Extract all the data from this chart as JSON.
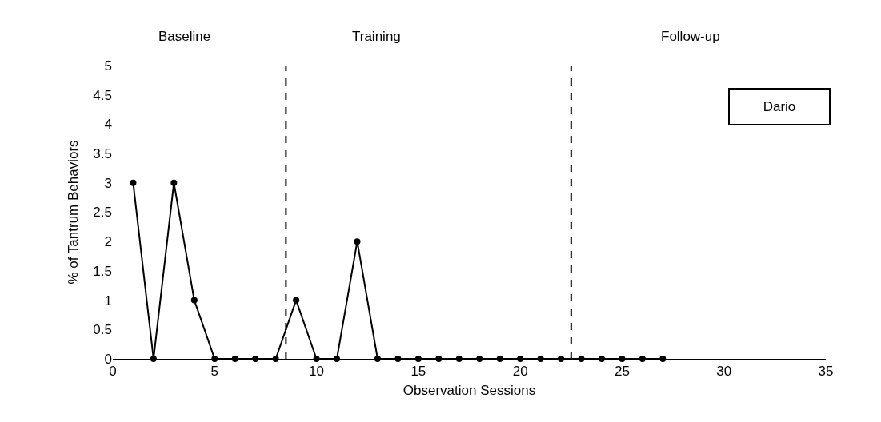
{
  "chart_data": {
    "type": "line",
    "xlabel": "Observation Sessions",
    "ylabel": "% of Tantrum Behaviors",
    "x": [
      1,
      2,
      3,
      4,
      5,
      6,
      7,
      8,
      9,
      10,
      11,
      12,
      13,
      14,
      15,
      16,
      17,
      18,
      19,
      20,
      21,
      22,
      23,
      24,
      25,
      26,
      27
    ],
    "series": [
      {
        "color": "#000000",
        "values": [
          3,
          0,
          3,
          1,
          0,
          0,
          0,
          0,
          1,
          0,
          0,
          2,
          0,
          0,
          0,
          0,
          0,
          0,
          0,
          0,
          0,
          0,
          0,
          0,
          0,
          0,
          0
        ]
      }
    ],
    "xlim": [
      0,
      35
    ],
    "xticks": [
      0,
      5,
      10,
      15,
      20,
      25,
      30,
      35
    ],
    "ylim": [
      0,
      5
    ],
    "yticks": [
      0,
      0.5,
      1,
      1.5,
      2,
      2.5,
      3,
      3.5,
      4,
      4.5,
      5
    ],
    "ref_lines": [
      {
        "axis": "x",
        "value": 8.5,
        "color": "#000000",
        "line_style": "dashed"
      },
      {
        "axis": "x",
        "value": 22.5,
        "color": "#000000",
        "line_style": "dashed"
      }
    ],
    "annotations": [
      "Baseline",
      "Training",
      "Follow-up",
      "Dario"
    ],
    "marker": "circle",
    "line_style": "solid"
  }
}
